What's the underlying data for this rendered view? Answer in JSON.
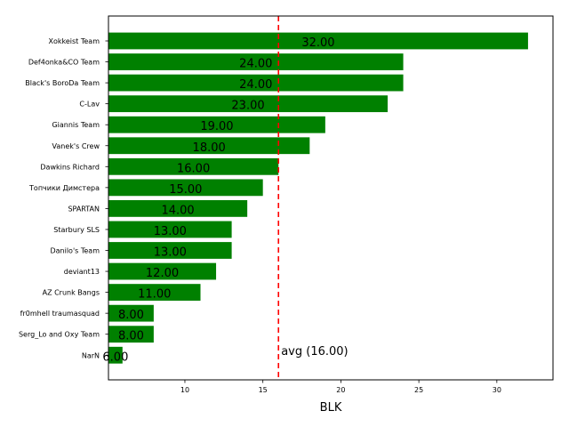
{
  "chart_data": {
    "type": "bar",
    "orientation": "horizontal",
    "categories": [
      "Xokkeist Team",
      "Def4onka&CO Team",
      "Black's BoroDa Team",
      "C-Lav",
      "Giannis Team",
      "Vanek's Crew",
      "Dawkins Richard",
      "Топчики Димстера",
      "SPARTAN",
      "Starbury SLS",
      "Danilo's Team",
      "deviant13",
      "AZ Crunk Bangs",
      "fr0mhell traumasquad",
      "Serg_Lo and Oxy Team",
      "NarN"
    ],
    "values": [
      32,
      24,
      24,
      23,
      19,
      18,
      16,
      15,
      14,
      13,
      13,
      12,
      11,
      8,
      8,
      6
    ],
    "value_labels": [
      "32.00",
      "24.00",
      "24.00",
      "23.00",
      "19.00",
      "18.00",
      "16.00",
      "15.00",
      "14.00",
      "13.00",
      "13.00",
      "12.00",
      "11.00",
      "8.00",
      "8.00",
      "6.00"
    ],
    "bar_color": "#008000",
    "xlabel": "BLK",
    "ylabel": "",
    "title": "",
    "xlim": [
      5.1,
      33.6
    ],
    "xticks": [
      10,
      15,
      20,
      25,
      30
    ],
    "xtick_labels": [
      "10",
      "15",
      "20",
      "25",
      "30"
    ],
    "average": {
      "value": 16,
      "label": "avg (16.00)",
      "color": "#ff0000",
      "style": "dashed"
    },
    "grid": false,
    "legend": "none"
  }
}
